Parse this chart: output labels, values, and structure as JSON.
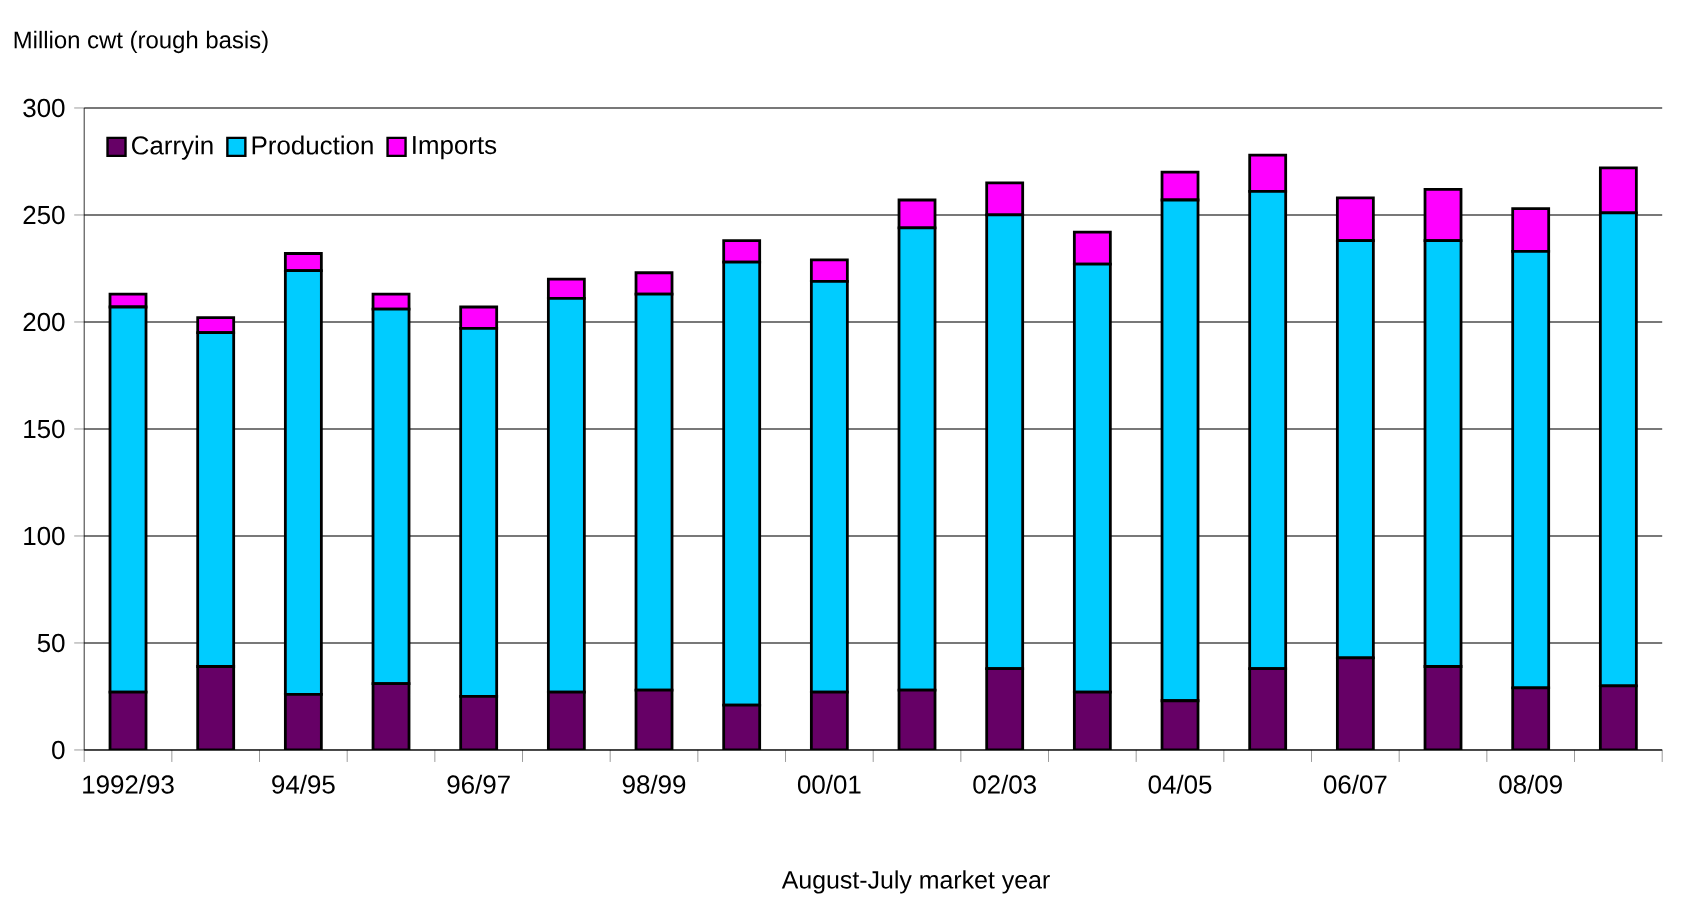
{
  "chart_data": {
    "type": "bar",
    "stacked": true,
    "ylabel": "Million cwt (rough basis)",
    "xlabel": "August-July market year",
    "categories": [
      "1992/93",
      null,
      "94/95",
      null,
      "96/97",
      null,
      "98/99",
      null,
      "00/01",
      null,
      "02/03",
      null,
      "04/05",
      null,
      "06/07",
      null,
      "08/09",
      null
    ],
    "series": [
      {
        "name": "Carryin",
        "color": "#660066",
        "values": [
          27,
          39,
          26,
          31,
          25,
          27,
          28,
          21,
          27,
          28,
          38,
          27,
          23,
          38,
          43,
          39,
          29,
          30
        ]
      },
      {
        "name": "Production",
        "color": "#00ccff",
        "values": [
          180,
          156,
          198,
          175,
          172,
          184,
          185,
          207,
          192,
          216,
          212,
          200,
          234,
          223,
          195,
          199,
          204,
          221
        ]
      },
      {
        "name": "Imports",
        "color": "#ff00ff",
        "values": [
          6,
          7,
          8,
          7,
          10,
          9,
          10,
          10,
          10,
          13,
          15,
          15,
          13,
          17,
          20,
          24,
          20,
          21
        ]
      }
    ],
    "ylim": [
      0,
      300
    ],
    "yticks": [
      0,
      50,
      100,
      150,
      200,
      250,
      300
    ],
    "grid": "y",
    "legend": "top left"
  }
}
